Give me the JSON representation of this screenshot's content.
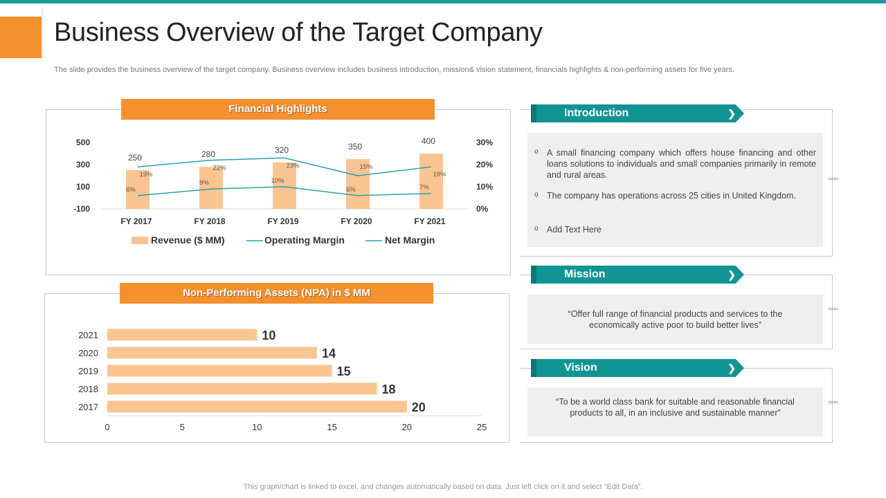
{
  "page": {
    "title": "Business Overview of the Target Company",
    "subtitle": "The slide provides the business overview of the target company. Business overview includes business introduction, mission& vision statement, financials highlights & non-performing assets for five years.",
    "footer": "This graph/chart is linked to excel, and changes automatically based on data. Just left click on it and select “Edit Data”."
  },
  "colors": {
    "accent": "#f5902f",
    "teal": "#139494",
    "bar": "#fbc591",
    "line": "#2aa0a8"
  },
  "financial": {
    "header": "Financial Highlights"
  },
  "npa": {
    "header": "Non-Performing Assets (NPA) in $ MM"
  },
  "introduction": {
    "label": "Introduction",
    "bullets": [
      "A small financing company which offers house financing and other loans solutions to individuals  and small companies primarily in remote and rural areas.",
      "The company has operations across 25 cities in United Kingdom.",
      "Add Text Here"
    ]
  },
  "mission": {
    "label": "Mission",
    "text": "“Offer full range of financial products and services to the economically active poor to build better lives”"
  },
  "vision": {
    "label": "Vision",
    "text": "“To  be a world class bank for suitable and reasonable financial products to all, in an inclusive and sustainable manner”"
  },
  "chart_data": [
    {
      "type": "bar",
      "title": "Financial Highlights",
      "categories": [
        "FY 2017",
        "FY 2018",
        "FY 2019",
        "FY 2020",
        "FY 2021"
      ],
      "series": [
        {
          "name": "Revenue ($ MM)",
          "kind": "bar",
          "axis": "left",
          "values": [
            250,
            280,
            320,
            350,
            400
          ],
          "labels": [
            "250",
            "280",
            "320",
            "350",
            "400"
          ]
        },
        {
          "name": "Operating Margin",
          "kind": "line",
          "axis": "right",
          "values": [
            19,
            22,
            23,
            15,
            19
          ],
          "labels": [
            "19%",
            "22%",
            "23%",
            "15%",
            "19%"
          ]
        },
        {
          "name": "Net Margin",
          "kind": "line",
          "axis": "right",
          "values": [
            6,
            9,
            10,
            6,
            7
          ],
          "labels": [
            "6%",
            "9%",
            "10%",
            "6%",
            "7%"
          ]
        }
      ],
      "y_left": {
        "ticks": [
          "500",
          "300",
          "100",
          "-100"
        ],
        "range": [
          -100,
          500
        ]
      },
      "y_right": {
        "ticks": [
          "30%",
          "20%",
          "10%",
          "0%"
        ],
        "range": [
          0,
          30
        ]
      },
      "legend": "bottom",
      "grid": false
    },
    {
      "type": "bar",
      "orientation": "horizontal",
      "title": "Non-Performing Assets (NPA) in $ MM",
      "categories": [
        "2021",
        "2020",
        "2019",
        "2018",
        "2017"
      ],
      "values": [
        10,
        14,
        15,
        18,
        20
      ],
      "labels": [
        "10",
        "14",
        "15",
        "18",
        "20"
      ],
      "x_ticks": [
        "0",
        "5",
        "10",
        "15",
        "20",
        "25"
      ],
      "xlim": [
        0,
        25
      ],
      "grid": false
    }
  ]
}
